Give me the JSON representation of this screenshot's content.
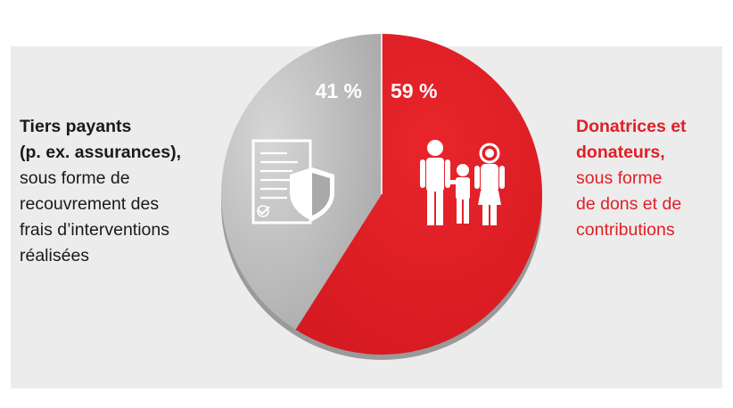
{
  "chart_data": {
    "type": "pie",
    "slices": [
      {
        "label": "Donatrices et donateurs",
        "value": 59,
        "value_label": "59 %",
        "color": "#e31e24"
      },
      {
        "label": "Tiers payants",
        "value": 41,
        "value_label": "41 %",
        "color": "#bdbdbd"
      }
    ]
  },
  "left_caption": {
    "bold_lines": [
      "Tiers payants",
      "(p. ex. assurances),"
    ],
    "lines": [
      "sous forme de",
      "recouvrement des",
      "frais d’interventions",
      "réalisées"
    ]
  },
  "right_caption": {
    "bold_lines": [
      "Donatrices et",
      "donateurs,"
    ],
    "lines": [
      "sous forme",
      "de dons et de",
      "contributions"
    ]
  },
  "icons": {
    "left": "document-shield-icon",
    "right": "family-icon"
  },
  "colors": {
    "accent": "#e31e24",
    "gray_slice": "#bdbdbd",
    "background_panel": "#ececec",
    "text_dark": "#1a1a1a"
  }
}
